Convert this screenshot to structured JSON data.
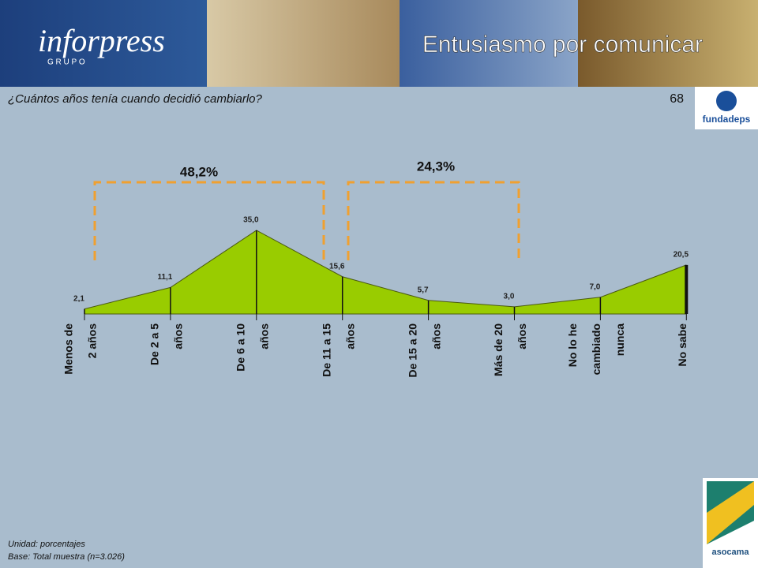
{
  "header": {
    "logo": "inforpress",
    "logo_sub": "G R U P O",
    "title": "Entusiasmo por comunicar"
  },
  "question": "¿Cuántos años tenía cuando decidió cambiarlo?",
  "page_number": "68",
  "sponsor": "fundadeps",
  "partner": "asocama",
  "footer": [
    "Unidad: porcentajes",
    "Base: Total muestra (n=3.026)"
  ],
  "chart_data": {
    "type": "area",
    "categories": [
      [
        "Menos de",
        "2 años"
      ],
      [
        "De 2 a 5",
        "años"
      ],
      [
        "De 6 a 10",
        "años"
      ],
      [
        "De 11 a 15",
        "años"
      ],
      [
        "De 15 a 20",
        "años"
      ],
      [
        "Más de 20",
        "años"
      ],
      [
        "No lo he",
        "cambiado",
        "nunca"
      ],
      [
        "No sabe"
      ]
    ],
    "values": [
      2.1,
      11.1,
      35.0,
      15.6,
      5.7,
      3.0,
      7.0,
      20.5
    ],
    "value_labels": [
      "2,1",
      "11,1",
      "35,0",
      "15,6",
      "5,7",
      "3,0",
      "7,0",
      "20,5"
    ],
    "color": "#99cc00",
    "annotations": [
      "48,2%",
      "24,3%"
    ]
  }
}
